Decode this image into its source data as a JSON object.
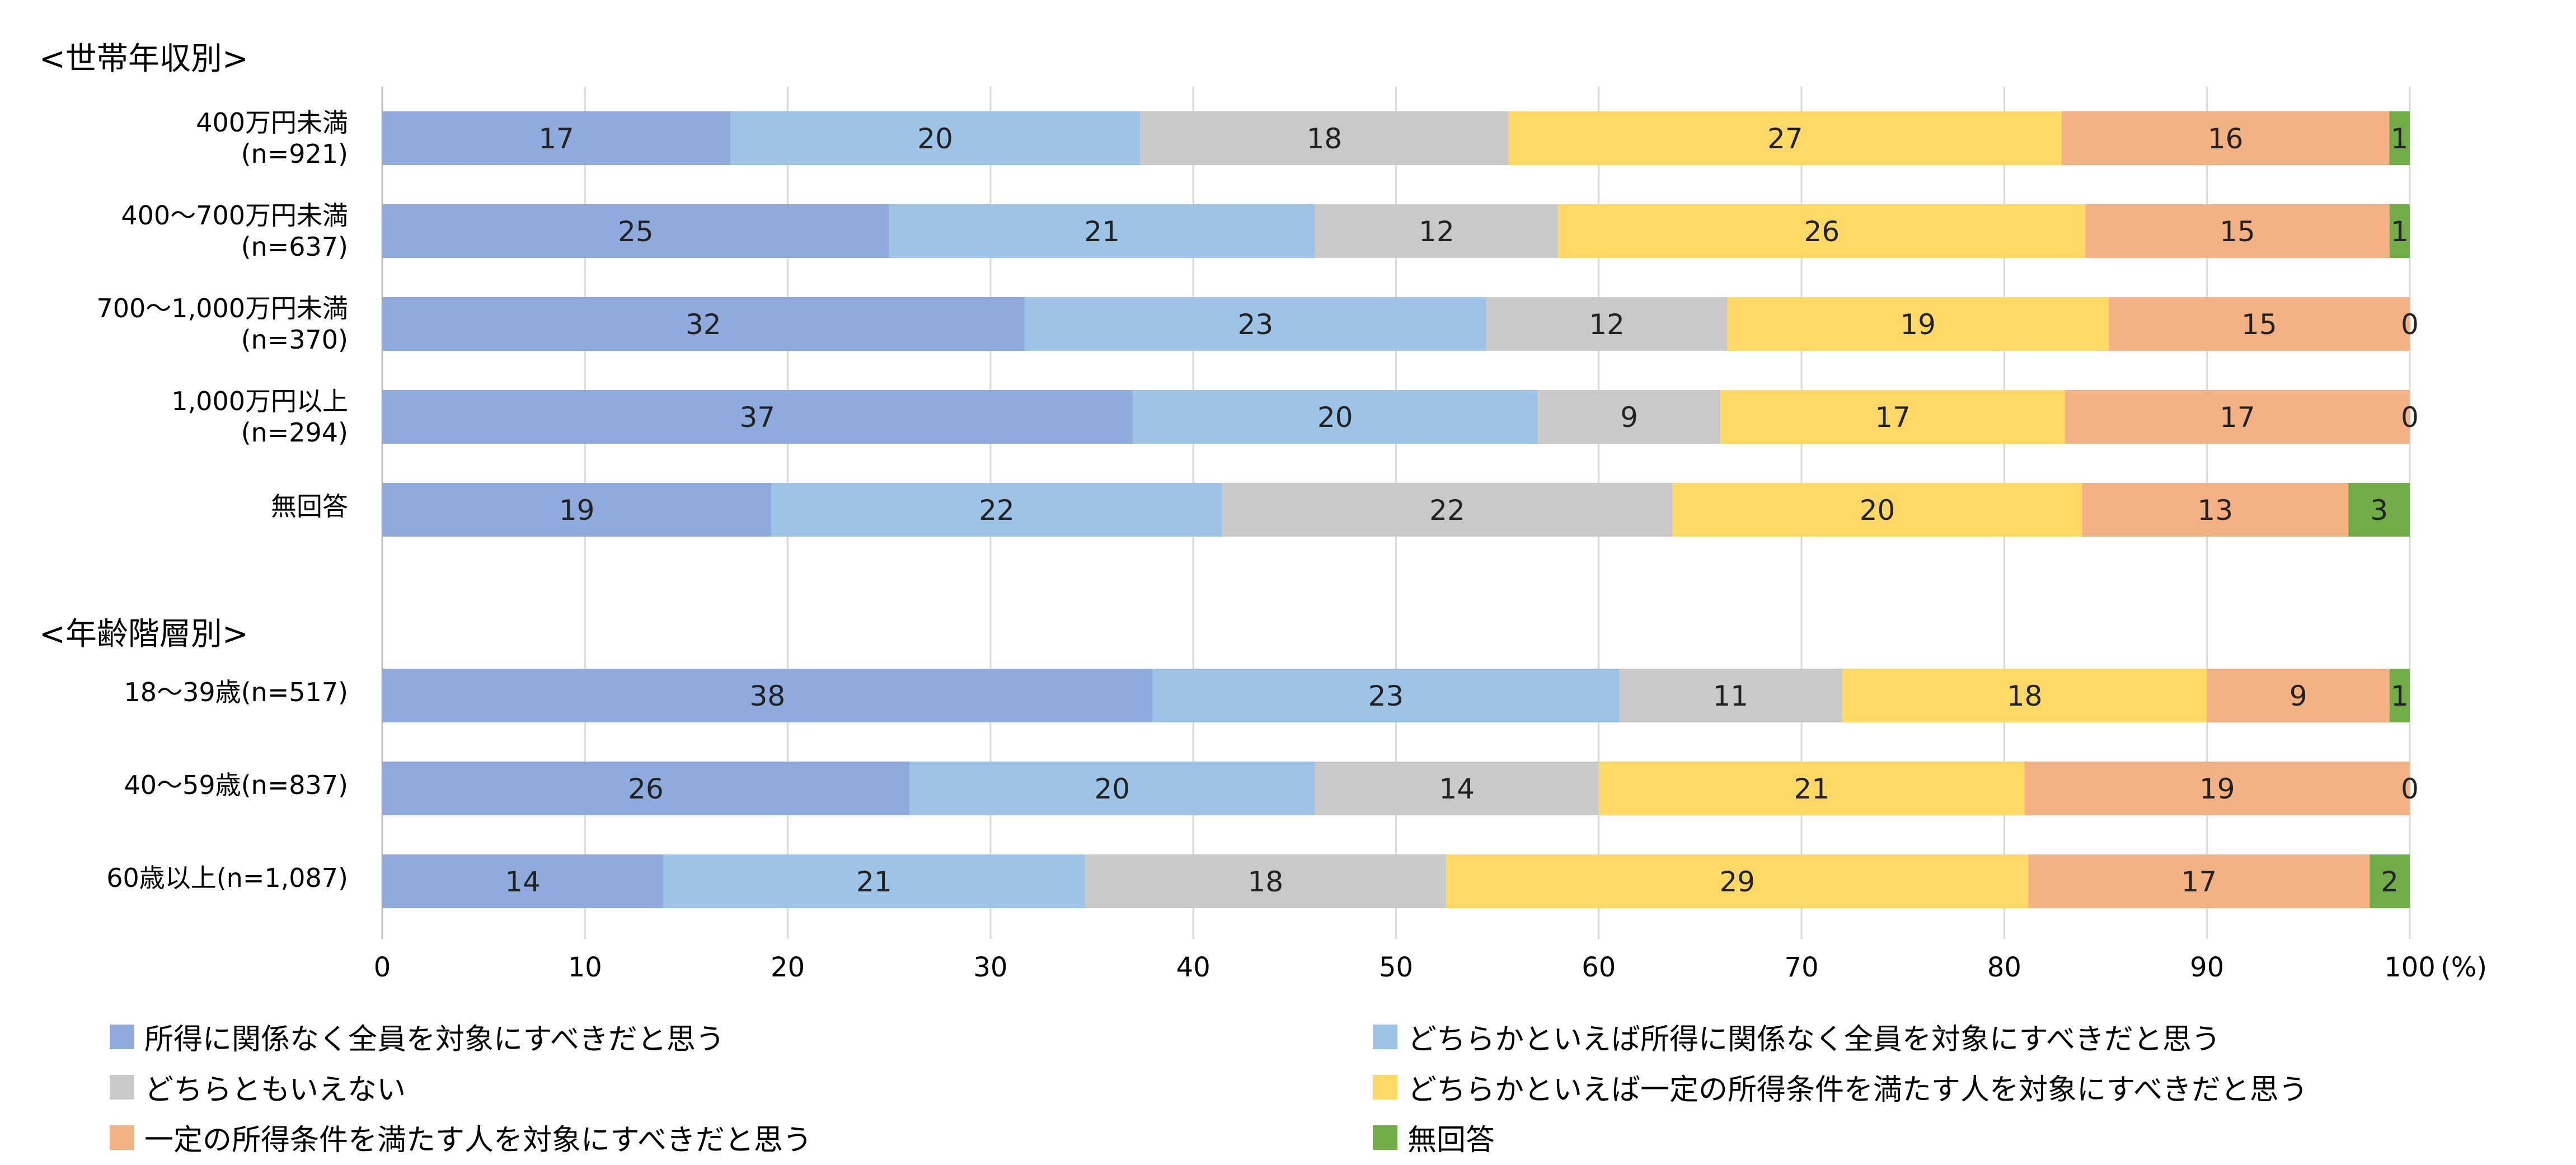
{
  "chart_data": {
    "type": "bar",
    "orientation": "horizontal",
    "stacked": true,
    "xlim": [
      0,
      100
    ],
    "xticks": [
      "0",
      "10",
      "20",
      "30",
      "40",
      "50",
      "60",
      "70",
      "80",
      "90",
      "100"
    ],
    "xunit": "(%)",
    "grid": true,
    "legend_position": "bottom",
    "series": [
      {
        "name": "所得に関係なく全員を対象にすべきだと思う",
        "color": "#8FAADC"
      },
      {
        "name": "どちらかといえば所得に関係なく全員を対象にすべきだと思う",
        "color": "#9DC3E6"
      },
      {
        "name": "どちらともいえない",
        "color": "#C9C9C9"
      },
      {
        "name": "どちらかといえば一定の所得条件を満たす人を対象にすべきだと思う",
        "color": "#FFD966"
      },
      {
        "name": "一定の所得条件を満たす人を対象にすべきだと思う",
        "color": "#F4B183"
      },
      {
        "name": "無回答",
        "color": "#70AD47"
      }
    ],
    "groups": [
      {
        "title": "<世帯年収別>",
        "rows": [
          {
            "label": [
              "400万円未満",
              "(n=921)"
            ],
            "values": [
              17,
              20,
              18,
              27,
              16,
              1
            ]
          },
          {
            "label": [
              "400～700万円未満",
              "(n=637)"
            ],
            "values": [
              25,
              21,
              12,
              26,
              15,
              1
            ]
          },
          {
            "label": [
              "700～1,000万円未満",
              "(n=370)"
            ],
            "values": [
              32,
              23,
              12,
              19,
              15,
              0
            ]
          },
          {
            "label": [
              "1,000万円以上",
              "(n=294)"
            ],
            "values": [
              37,
              20,
              9,
              17,
              17,
              0
            ]
          },
          {
            "label": [
              "無回答"
            ],
            "values": [
              19,
              22,
              22,
              20,
              13,
              3
            ]
          }
        ]
      },
      {
        "title": "<年齢階層別>",
        "rows": [
          {
            "label": [
              "18～39歳(n=517)"
            ],
            "values": [
              38,
              23,
              11,
              18,
              9,
              1
            ]
          },
          {
            "label": [
              "40～59歳(n=837)"
            ],
            "values": [
              26,
              20,
              14,
              21,
              19,
              0
            ]
          },
          {
            "label": [
              "60歳以上(n=1,087)"
            ],
            "values": [
              14,
              21,
              18,
              29,
              17,
              2
            ]
          }
        ]
      }
    ]
  }
}
